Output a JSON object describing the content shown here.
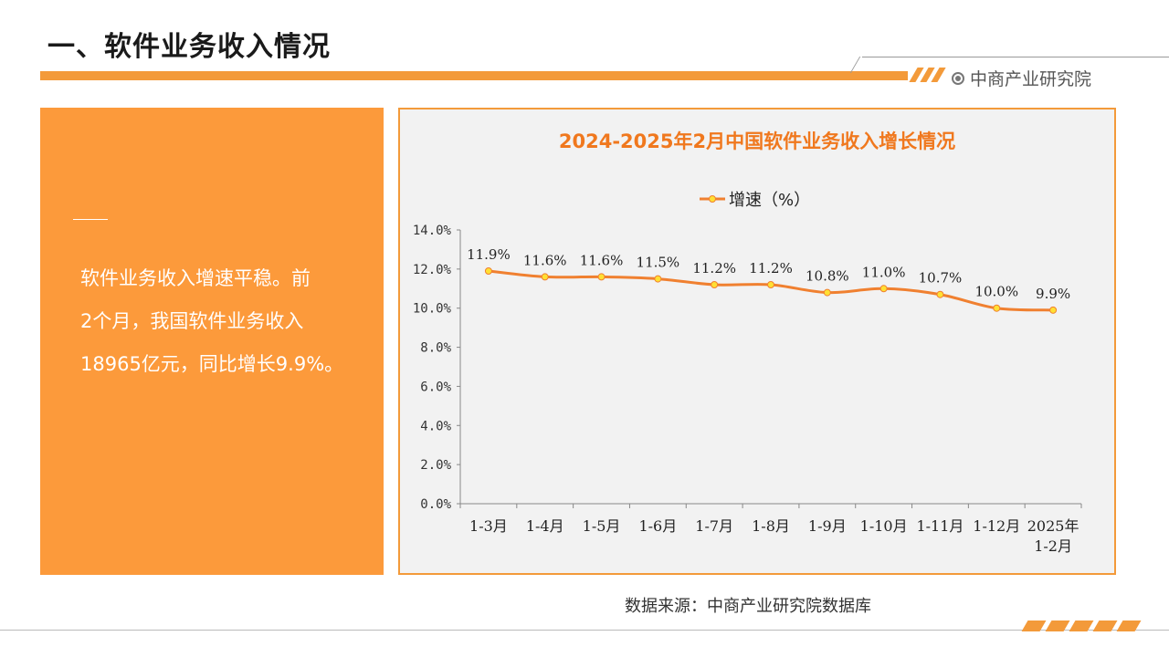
{
  "header": {
    "title": "一、软件业务收入情况",
    "brand": "中商产业研究院"
  },
  "summary": {
    "lines": [
      "软件业务收入增速平稳。前",
      "2个月，我国软件业务收入",
      "18965亿元，同比增长9.9%。"
    ]
  },
  "source": "数据来源：中商产业研究院数据库",
  "colors": {
    "accent": "#f39a3a",
    "panel": "#fc9a3b",
    "line": "#f08030",
    "marker": "#ffe033",
    "title": "#f0781e"
  },
  "chart_data": {
    "type": "line",
    "title": "2024-2025年2月中国软件业务收入增长情况",
    "categories": [
      [
        "1-3月"
      ],
      [
        "1-4月"
      ],
      [
        "1-5月"
      ],
      [
        "1-6月"
      ],
      [
        "1-7月"
      ],
      [
        "1-8月"
      ],
      [
        "1-9月"
      ],
      [
        "1-10月"
      ],
      [
        "1-11月"
      ],
      [
        "1-12月"
      ],
      [
        "2025年",
        "1-2月"
      ]
    ],
    "series": [
      {
        "name": "增速（%）",
        "values": [
          11.9,
          11.6,
          11.6,
          11.5,
          11.2,
          11.2,
          10.8,
          11.0,
          10.7,
          10.0,
          9.9
        ],
        "data_labels": [
          "11.9%",
          "11.6%",
          "11.6%",
          "11.5%",
          "11.2%",
          "11.2%",
          "10.8%",
          "11.0%",
          "10.7%",
          "10.0%",
          "9.9%"
        ]
      }
    ],
    "y_ticks": [
      "0.0%",
      "2.0%",
      "4.0%",
      "6.0%",
      "8.0%",
      "10.0%",
      "12.0%",
      "14.0%"
    ],
    "ylim": [
      0,
      14
    ],
    "legend_position": "top-center",
    "grid": false
  }
}
